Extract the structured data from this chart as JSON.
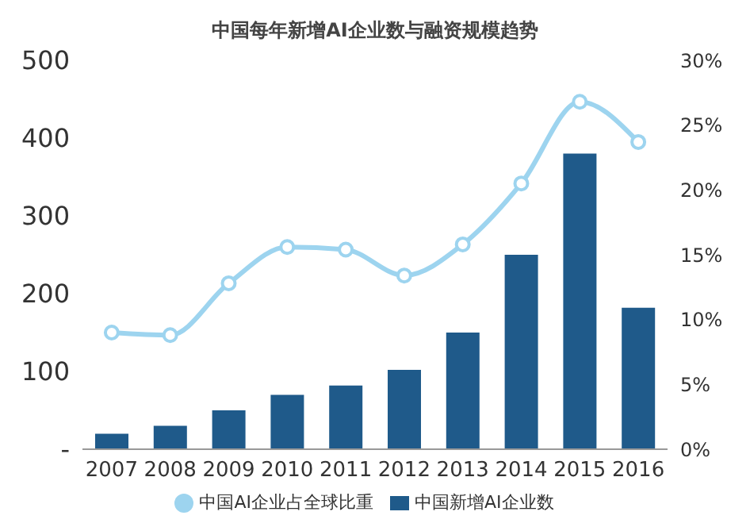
{
  "chart_data": {
    "type": "bar",
    "title": "中国每年新增AI企业数与融资规模趋势",
    "categories": [
      "2007",
      "2008",
      "2009",
      "2010",
      "2011",
      "2012",
      "2013",
      "2014",
      "2015",
      "2016"
    ],
    "series": [
      {
        "name": "中国新增AI企业数",
        "color": "#1f5a8a",
        "values": [
          20,
          30,
          50,
          70,
          82,
          102,
          150,
          250,
          380,
          182
        ]
      },
      {
        "name": "中国AI企业占全球比重",
        "type": "line",
        "axis": "y2",
        "color": "#9dd4ef",
        "marker": "circle",
        "values": [
          9.0,
          8.8,
          12.8,
          15.6,
          15.4,
          13.4,
          15.8,
          20.5,
          26.8,
          23.7
        ]
      }
    ],
    "ylim": [
      0,
      500
    ],
    "yticks": [
      {
        "value": 0,
        "label": "-"
      },
      100,
      200,
      300,
      400,
      500
    ],
    "y2lim": [
      0,
      30
    ],
    "y2ticks": [
      {
        "value": 0,
        "label": "0%"
      },
      {
        "value": 5,
        "label": "5%"
      },
      {
        "value": 10,
        "label": "10%"
      },
      {
        "value": 15,
        "label": "15%"
      },
      {
        "value": 20,
        "label": "20%"
      },
      {
        "value": 25,
        "label": "25%"
      },
      {
        "value": 30,
        "label": "30%"
      }
    ],
    "grid": false,
    "legend": "bottom"
  }
}
